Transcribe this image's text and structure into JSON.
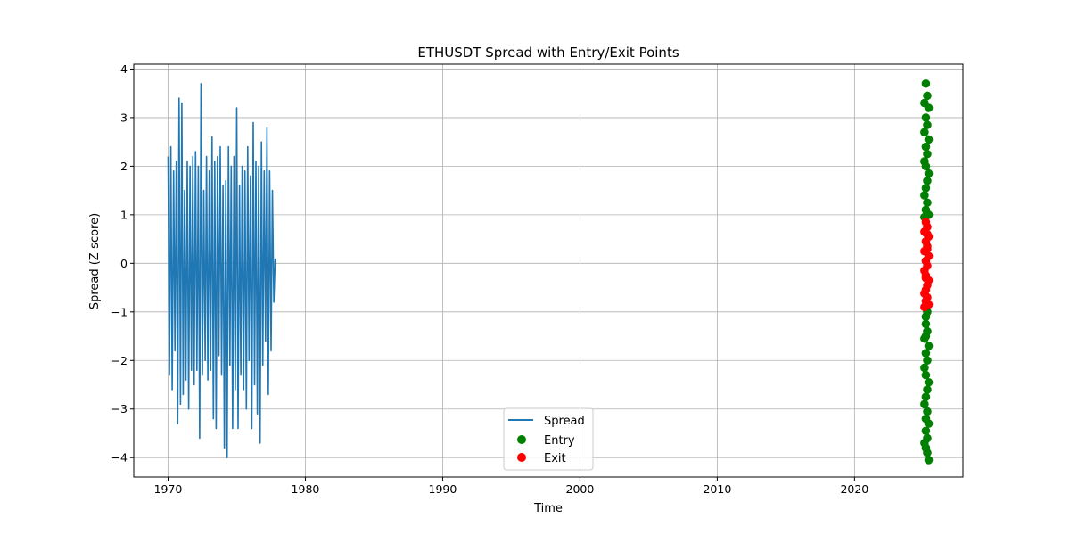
{
  "chart_data": {
    "type": "line",
    "title": "ETHUSDT Spread with Entry/Exit Points",
    "xlabel": "Time",
    "ylabel": "Spread (Z-score)",
    "xlim": [
      1967.5,
      2027.9
    ],
    "ylim": [
      -4.4,
      4.1
    ],
    "xticks": [
      1970,
      1980,
      1990,
      2000,
      2010,
      2020
    ],
    "yticks": [
      -4,
      -3,
      -2,
      -1,
      0,
      1,
      2,
      3,
      4
    ],
    "grid": true,
    "legend_position": "lower-center",
    "colors": {
      "spread": "#1f77b4",
      "entry": "#008000",
      "exit": "#ff0000"
    },
    "series": [
      {
        "name": "Spread",
        "kind": "line",
        "color": "#1f77b4",
        "x": [
          1970.0,
          1970.1,
          1970.2,
          1970.3,
          1970.4,
          1970.5,
          1970.6,
          1970.7,
          1970.8,
          1970.9,
          1971.0,
          1971.1,
          1971.2,
          1971.3,
          1971.4,
          1971.5,
          1971.6,
          1971.7,
          1971.8,
          1971.9,
          1972.0,
          1972.1,
          1972.2,
          1972.3,
          1972.4,
          1972.5,
          1972.6,
          1972.7,
          1972.8,
          1972.9,
          1973.0,
          1973.1,
          1973.2,
          1973.3,
          1973.4,
          1973.5,
          1973.6,
          1973.7,
          1973.8,
          1973.9,
          1974.0,
          1974.1,
          1974.2,
          1974.3,
          1974.4,
          1974.5,
          1974.6,
          1974.7,
          1974.8,
          1974.9,
          1975.0,
          1975.1,
          1975.2,
          1975.3,
          1975.4,
          1975.5,
          1975.6,
          1975.7,
          1975.8,
          1975.9,
          1976.0,
          1976.1,
          1976.2,
          1976.3,
          1976.4,
          1976.5,
          1976.6,
          1976.7,
          1976.8,
          1976.9,
          1977.0,
          1977.1,
          1977.2,
          1977.3,
          1977.4,
          1977.5,
          1977.6,
          1977.7,
          1977.8
        ],
        "y": [
          2.2,
          -2.3,
          2.4,
          -2.6,
          1.9,
          -1.8,
          2.1,
          -3.3,
          3.4,
          -2.9,
          3.3,
          -2.7,
          1.5,
          -2.4,
          2.1,
          -3.0,
          2.0,
          -2.2,
          2.2,
          -2.5,
          2.3,
          -2.2,
          2.0,
          -3.6,
          3.7,
          -2.3,
          1.5,
          -2.0,
          2.2,
          -2.4,
          1.9,
          -2.2,
          2.6,
          -3.2,
          2.1,
          -3.4,
          2.2,
          -1.9,
          2.4,
          -2.3,
          1.6,
          -3.8,
          1.7,
          -4.0,
          2.4,
          -2.1,
          2.0,
          -3.4,
          2.2,
          -2.6,
          3.2,
          -3.4,
          1.6,
          -2.3,
          2.0,
          -2.6,
          1.9,
          -3.0,
          2.4,
          -2.0,
          1.8,
          -3.4,
          2.9,
          -2.5,
          2.1,
          -3.1,
          2.0,
          -3.7,
          2.5,
          -2.1,
          1.9,
          -1.6,
          2.8,
          -2.7,
          1.9,
          -1.8,
          1.5,
          -0.8,
          0.1
        ]
      },
      {
        "name": "Entry",
        "kind": "scatter",
        "color": "#008000",
        "x": [
          2025.2,
          2025.3,
          2025.1,
          2025.4,
          2025.2,
          2025.3,
          2025.1,
          2025.4,
          2025.2,
          2025.3,
          2025.1,
          2025.2,
          2025.4,
          2025.3,
          2025.2,
          2025.1,
          2025.3,
          2025.2,
          2025.4,
          2025.1,
          2025.3,
          2025.2,
          2025.2,
          2025.3,
          2025.1,
          2025.4,
          2025.2,
          2025.3,
          2025.1,
          2025.2,
          2025.4,
          2025.3,
          2025.2,
          2025.1,
          2025.3,
          2025.2,
          2025.4,
          2025.2,
          2025.3,
          2025.1,
          2025.2,
          2025.3,
          2025.4,
          2025.2
        ],
        "y": [
          3.7,
          3.45,
          3.3,
          3.2,
          3.0,
          2.85,
          2.7,
          2.55,
          2.4,
          2.25,
          2.1,
          2.0,
          1.85,
          1.7,
          1.55,
          1.4,
          1.25,
          1.1,
          1.0,
          0.95,
          -1.0,
          -1.1,
          -1.25,
          -1.4,
          -1.55,
          -1.7,
          -1.85,
          -2.0,
          -2.15,
          -2.3,
          -2.45,
          -2.6,
          -2.75,
          -2.9,
          -3.05,
          -3.2,
          -3.3,
          -3.45,
          -3.6,
          -3.7,
          -3.8,
          -3.9,
          -4.05,
          -1.5
        ]
      },
      {
        "name": "Exit",
        "kind": "scatter",
        "color": "#ff0000",
        "x": [
          2025.2,
          2025.3,
          2025.1,
          2025.4,
          2025.2,
          2025.3,
          2025.1,
          2025.4,
          2025.2,
          2025.3,
          2025.1,
          2025.2,
          2025.4,
          2025.3,
          2025.2,
          2025.1,
          2025.3,
          2025.2,
          2025.4,
          2025.1,
          2025.3,
          2025.2,
          2025.3
        ],
        "y": [
          0.85,
          0.75,
          0.65,
          0.55,
          0.45,
          0.35,
          0.25,
          0.15,
          0.05,
          -0.05,
          -0.15,
          -0.25,
          -0.35,
          -0.45,
          -0.55,
          -0.62,
          -0.7,
          -0.78,
          -0.85,
          -0.9,
          0.3,
          -0.3,
          0.6
        ]
      }
    ]
  }
}
